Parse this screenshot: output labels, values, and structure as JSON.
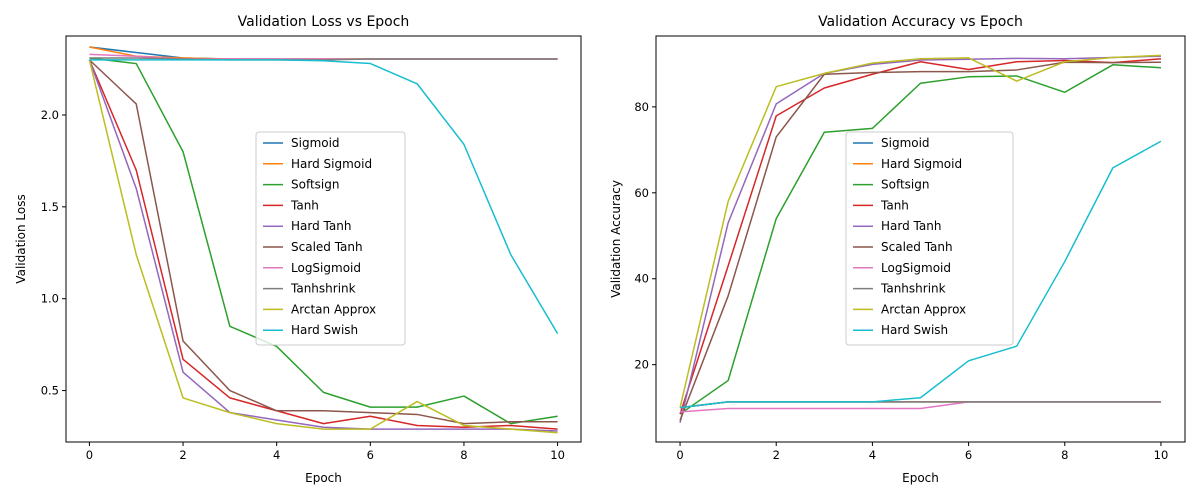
{
  "chart_data": [
    {
      "type": "line",
      "title": "Validation Loss vs Epoch",
      "xlabel": "Epoch",
      "ylabel": "Validation Loss",
      "xlim": [
        -0.5,
        10.5
      ],
      "ylim": [
        0.22,
        2.43
      ],
      "xticks": [
        0,
        2,
        4,
        6,
        8,
        10
      ],
      "yticks": [
        0.5,
        1.0,
        1.5,
        2.0
      ],
      "ytick_labels": [
        "0.5",
        "1.0",
        "1.5",
        "2.0"
      ],
      "legend_position": "center",
      "x": [
        0,
        1,
        2,
        3,
        4,
        5,
        6,
        7,
        8,
        9,
        10
      ],
      "series": [
        {
          "name": "Sigmoid",
          "color": "#1f77b4",
          "values": [
            2.37,
            2.34,
            2.31,
            2.305,
            2.305,
            2.305,
            2.305,
            2.305,
            2.305,
            2.305,
            2.305
          ]
        },
        {
          "name": "Hard Sigmoid",
          "color": "#ff7f0e",
          "values": [
            2.37,
            2.32,
            2.31,
            2.305,
            2.305,
            2.305,
            2.305,
            2.305,
            2.305,
            2.305,
            2.305
          ]
        },
        {
          "name": "Softsign",
          "color": "#2ca02c",
          "values": [
            2.31,
            2.28,
            1.8,
            0.85,
            0.74,
            0.49,
            0.41,
            0.41,
            0.47,
            0.32,
            0.36
          ]
        },
        {
          "name": "Tanh",
          "color": "#d62728",
          "values": [
            2.3,
            1.7,
            0.67,
            0.46,
            0.39,
            0.32,
            0.36,
            0.31,
            0.3,
            0.31,
            0.29
          ]
        },
        {
          "name": "Hard Tanh",
          "color": "#9467bd",
          "values": [
            2.3,
            1.6,
            0.6,
            0.38,
            0.34,
            0.3,
            0.29,
            0.29,
            0.29,
            0.29,
            0.28
          ]
        },
        {
          "name": "Scaled Tanh",
          "color": "#8c564b",
          "values": [
            2.3,
            2.06,
            0.77,
            0.5,
            0.39,
            0.39,
            0.38,
            0.37,
            0.32,
            0.33,
            0.33
          ]
        },
        {
          "name": "LogSigmoid",
          "color": "#e377c2",
          "values": [
            2.33,
            2.32,
            2.305,
            2.305,
            2.305,
            2.305,
            2.305,
            2.305,
            2.305,
            2.305,
            2.305
          ]
        },
        {
          "name": "Tanhshrink",
          "color": "#7f7f7f",
          "values": [
            2.31,
            2.31,
            2.305,
            2.3,
            2.3,
            2.3,
            2.305,
            2.305,
            2.305,
            2.305,
            2.305
          ]
        },
        {
          "name": "Arctan Approx",
          "color": "#bcbd22",
          "values": [
            2.3,
            1.24,
            0.46,
            0.38,
            0.32,
            0.29,
            0.29,
            0.44,
            0.31,
            0.29,
            0.27
          ]
        },
        {
          "name": "Hard Swish",
          "color": "#17becf",
          "values": [
            2.3,
            2.3,
            2.3,
            2.3,
            2.3,
            2.295,
            2.28,
            2.17,
            1.84,
            1.24,
            0.81
          ]
        }
      ]
    },
    {
      "type": "line",
      "title": "Validation Accuracy vs Epoch",
      "xlabel": "Epoch",
      "ylabel": "Validation Accuracy",
      "xlim": [
        -0.5,
        10.5
      ],
      "ylim": [
        2.0,
        96.5
      ],
      "xticks": [
        0,
        2,
        4,
        6,
        8,
        10
      ],
      "yticks": [
        20,
        40,
        60,
        80
      ],
      "ytick_labels": [
        "20",
        "40",
        "60",
        "80"
      ],
      "legend_position": "center",
      "x": [
        0,
        1,
        2,
        3,
        4,
        5,
        6,
        7,
        8,
        9,
        10
      ],
      "series": [
        {
          "name": "Sigmoid",
          "color": "#1f77b4",
          "values": [
            10.0,
            11.35,
            11.35,
            11.35,
            11.35,
            11.35,
            11.35,
            11.35,
            11.35,
            11.35,
            11.35
          ]
        },
        {
          "name": "Hard Sigmoid",
          "color": "#ff7f0e",
          "values": [
            10.0,
            11.35,
            11.35,
            11.35,
            11.35,
            11.35,
            11.35,
            11.35,
            11.35,
            11.35,
            11.35
          ]
        },
        {
          "name": "Softsign",
          "color": "#2ca02c",
          "values": [
            8.5,
            16.3,
            54.0,
            74.1,
            75.0,
            85.5,
            87.0,
            87.2,
            83.4,
            89.8,
            89.1
          ]
        },
        {
          "name": "Tanh",
          "color": "#d62728",
          "values": [
            8.5,
            43.0,
            77.9,
            84.4,
            87.6,
            90.5,
            88.7,
            90.5,
            90.8,
            90.3,
            91.2
          ]
        },
        {
          "name": "Hard Tanh",
          "color": "#9467bd",
          "values": [
            6.5,
            53.0,
            80.7,
            87.8,
            89.9,
            90.9,
            91.1,
            91.3,
            91.2,
            91.5,
            91.8
          ]
        },
        {
          "name": "Scaled Tanh",
          "color": "#8c564b",
          "values": [
            7.0,
            36.0,
            73.0,
            87.6,
            88.0,
            88.2,
            88.2,
            88.6,
            90.4,
            90.3,
            90.4
          ]
        },
        {
          "name": "LogSigmoid",
          "color": "#e377c2",
          "values": [
            9.0,
            9.8,
            9.8,
            9.8,
            9.8,
            9.8,
            11.35,
            11.35,
            11.35,
            11.35,
            11.35
          ]
        },
        {
          "name": "Tanhshrink",
          "color": "#7f7f7f",
          "values": [
            10.0,
            11.35,
            11.35,
            11.35,
            11.35,
            11.35,
            11.35,
            11.35,
            11.35,
            11.35,
            11.35
          ]
        },
        {
          "name": "Arctan Approx",
          "color": "#bcbd22",
          "values": [
            10.0,
            58.0,
            84.7,
            87.8,
            90.2,
            91.2,
            91.4,
            86.0,
            90.5,
            91.5,
            92.0
          ]
        },
        {
          "name": "Hard Swish",
          "color": "#17becf",
          "values": [
            10.0,
            11.35,
            11.35,
            11.35,
            11.35,
            12.3,
            20.9,
            24.3,
            44.0,
            65.8,
            72.0
          ]
        }
      ]
    }
  ]
}
